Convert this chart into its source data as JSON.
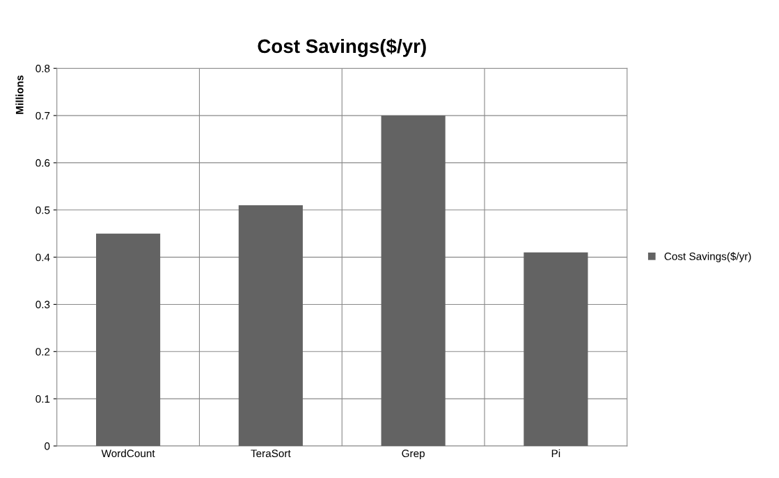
{
  "chart_data": {
    "type": "bar",
    "title": "Cost Savings($/yr)",
    "ylabel": "Millions",
    "categories": [
      "WordCount",
      "TeraSort",
      "Grep",
      "Pi"
    ],
    "series": [
      {
        "name": "Cost Savings($/yr)",
        "color": "#636363",
        "values": [
          0.45,
          0.51,
          0.7,
          0.41
        ]
      }
    ],
    "ylim": [
      0,
      0.8
    ],
    "yticks": [
      {
        "value": 0,
        "label": "0"
      },
      0.1,
      0.2,
      0.3,
      0.4,
      0.5,
      0.6,
      0.7,
      0.8
    ],
    "grid": true,
    "legend": "right"
  }
}
